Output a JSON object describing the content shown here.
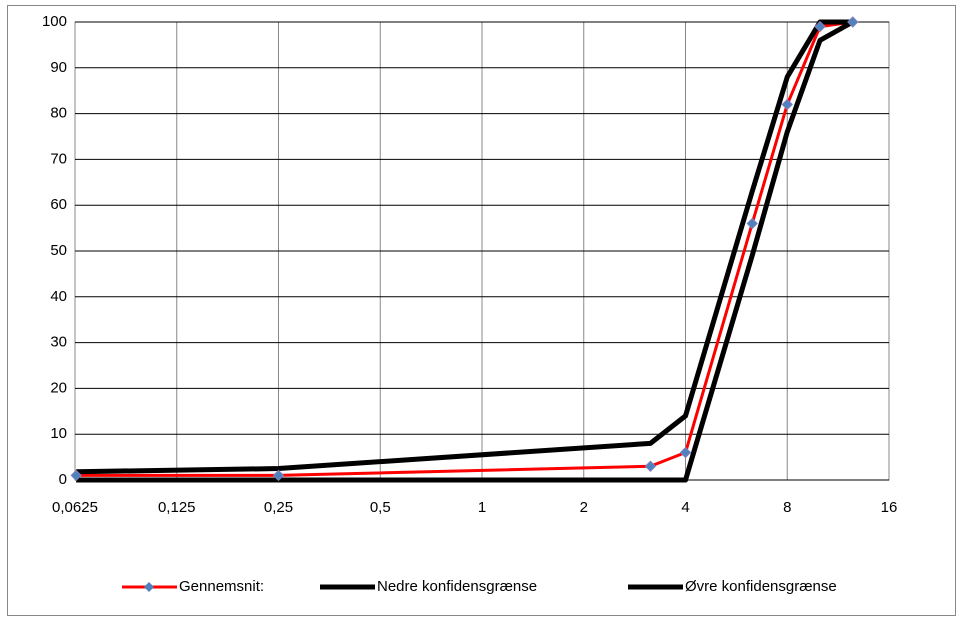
{
  "chart_data": {
    "type": "line",
    "x": [
      0.063,
      0.25,
      3.15,
      4,
      6.3,
      8,
      10,
      12.5
    ],
    "series": [
      {
        "name": "Gennemsnit:",
        "color": "#ff0000",
        "marker_color": "#4f81bd",
        "values": [
          1,
          1,
          3,
          6,
          56,
          82,
          99,
          100
        ]
      },
      {
        "name": "Nedre konfidensgrænse",
        "color": "#000000",
        "values": [
          0,
          0,
          0,
          0,
          49,
          76,
          96,
          100
        ]
      },
      {
        "name": "Øvre konfidensgrænse",
        "color": "#000000",
        "values": [
          1.8,
          2.5,
          8,
          14,
          63,
          88,
          100,
          100
        ]
      }
    ],
    "xlog": true,
    "xlim": [
      0.0625,
      16
    ],
    "xticks": [
      {
        "value": 0.0625,
        "label": "0,0625"
      },
      {
        "value": 0.125,
        "label": "0,125"
      },
      {
        "value": 0.25,
        "label": "0,25"
      },
      {
        "value": 0.5,
        "label": "0,5"
      },
      1,
      2,
      4,
      8,
      16
    ],
    "ylim": [
      0,
      100
    ],
    "yticks": [
      0,
      10,
      20,
      30,
      40,
      50,
      60,
      70,
      80,
      90,
      100
    ],
    "grid": true,
    "legend": "bottom"
  }
}
